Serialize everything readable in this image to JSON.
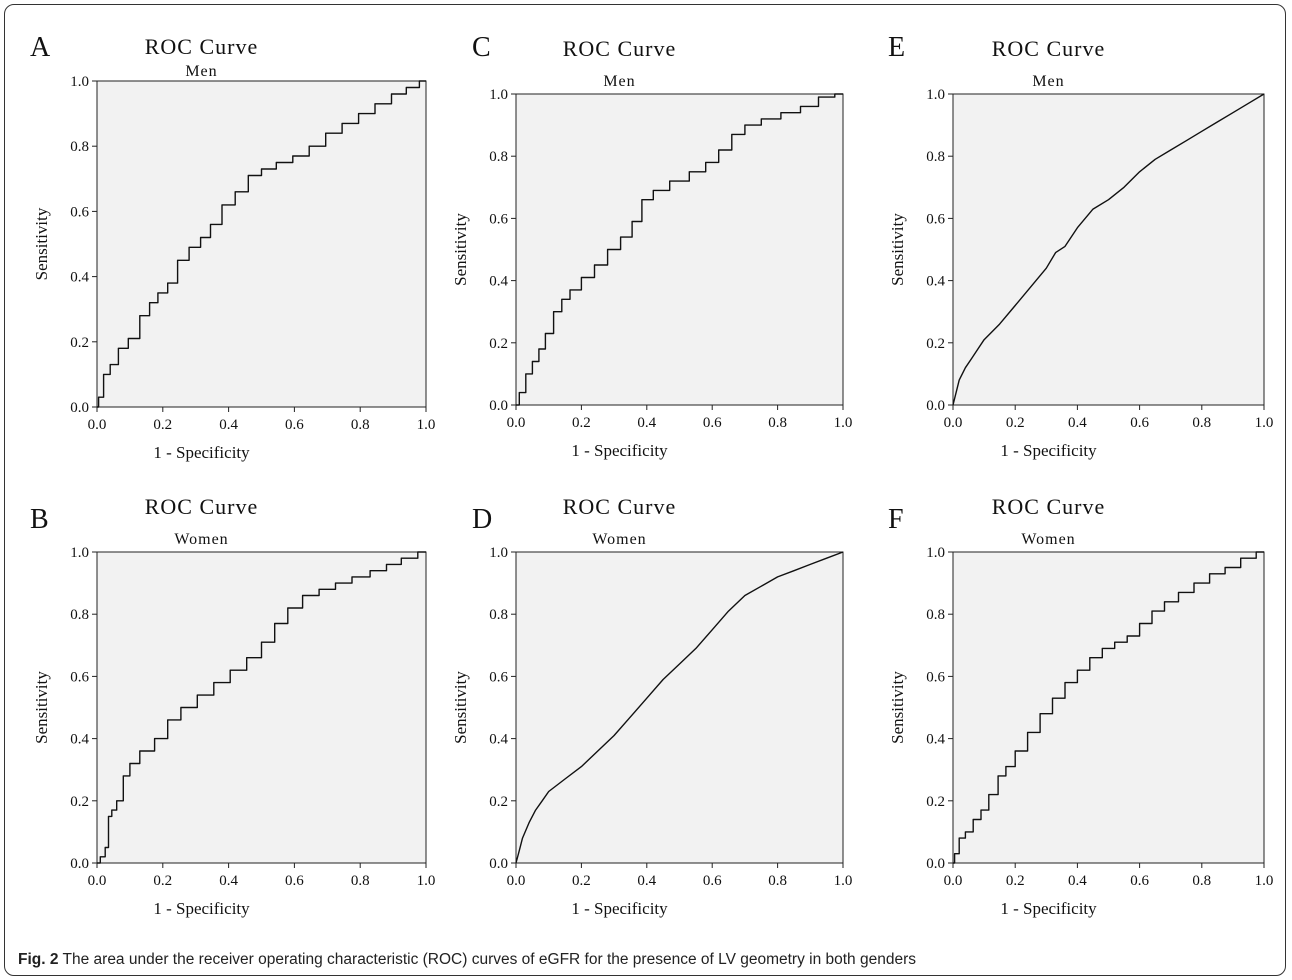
{
  "figure": {
    "caption_label": "Fig. 2",
    "caption_text": "The area under the receiver operating characteristic (ROC) curves of eGFR for the presence of LV geometry in both genders"
  },
  "chart_data": [
    {
      "type": "line",
      "panel": "A",
      "title": "ROC Curve",
      "subtitle": "Men",
      "xlabel": "1 - Specificity",
      "ylabel": "Sensitivity",
      "xlim": [
        0,
        1
      ],
      "ylim": [
        0,
        1
      ],
      "xticks": [
        "0.0",
        "0.2",
        "0.4",
        "0.6",
        "0.8",
        "1.0"
      ],
      "yticks": [
        "0.0",
        "0.2",
        "0.4",
        "0.6",
        "0.8",
        "1.0"
      ],
      "grid": false,
      "step": true,
      "x": [
        0,
        0.01,
        0.03,
        0.05,
        0.08,
        0.11,
        0.15,
        0.17,
        0.2,
        0.23,
        0.26,
        0.3,
        0.33,
        0.36,
        0.4,
        0.44,
        0.48,
        0.52,
        0.57,
        0.62,
        0.67,
        0.72,
        0.77,
        0.82,
        0.87,
        0.92,
        0.96,
        1.0
      ],
      "y": [
        0,
        0.03,
        0.1,
        0.13,
        0.18,
        0.21,
        0.28,
        0.32,
        0.35,
        0.38,
        0.45,
        0.49,
        0.52,
        0.56,
        0.62,
        0.66,
        0.71,
        0.73,
        0.75,
        0.77,
        0.8,
        0.84,
        0.87,
        0.9,
        0.93,
        0.96,
        0.98,
        1.0
      ]
    },
    {
      "type": "line",
      "panel": "B",
      "title": "ROC Curve",
      "subtitle": "Women",
      "xlabel": "1 - Specificity",
      "ylabel": "Sensitivity",
      "xlim": [
        0,
        1
      ],
      "ylim": [
        0,
        1
      ],
      "xticks": [
        "0.0",
        "0.2",
        "0.4",
        "0.6",
        "0.8",
        "1.0"
      ],
      "yticks": [
        "0.0",
        "0.2",
        "0.4",
        "0.6",
        "0.8",
        "1.0"
      ],
      "grid": false,
      "step": true,
      "x": [
        0,
        0.02,
        0.03,
        0.04,
        0.05,
        0.07,
        0.09,
        0.11,
        0.15,
        0.2,
        0.23,
        0.28,
        0.33,
        0.38,
        0.43,
        0.48,
        0.52,
        0.56,
        0.6,
        0.65,
        0.7,
        0.75,
        0.8,
        0.86,
        0.9,
        0.95,
        1.0
      ],
      "y": [
        0,
        0.02,
        0.05,
        0.15,
        0.17,
        0.2,
        0.28,
        0.32,
        0.36,
        0.4,
        0.46,
        0.5,
        0.54,
        0.58,
        0.62,
        0.66,
        0.71,
        0.77,
        0.82,
        0.86,
        0.88,
        0.9,
        0.92,
        0.94,
        0.96,
        0.98,
        1.0
      ]
    },
    {
      "type": "line",
      "panel": "C",
      "title": "ROC Curve",
      "subtitle": "Men",
      "xlabel": "1 - Specificity",
      "ylabel": "Sensitivity",
      "xlim": [
        0,
        1
      ],
      "ylim": [
        0,
        1
      ],
      "xticks": [
        "0.0",
        "0.2",
        "0.4",
        "0.6",
        "0.8",
        "1.0"
      ],
      "yticks": [
        "0.0",
        "0.2",
        "0.4",
        "0.6",
        "0.8",
        "1.0"
      ],
      "grid": false,
      "step": true,
      "x": [
        0,
        0.02,
        0.04,
        0.06,
        0.08,
        0.1,
        0.13,
        0.15,
        0.18,
        0.22,
        0.26,
        0.3,
        0.34,
        0.37,
        0.4,
        0.44,
        0.5,
        0.56,
        0.6,
        0.64,
        0.68,
        0.72,
        0.78,
        0.84,
        0.9,
        0.95,
        1.0
      ],
      "y": [
        0,
        0.04,
        0.1,
        0.14,
        0.18,
        0.23,
        0.3,
        0.34,
        0.37,
        0.41,
        0.45,
        0.5,
        0.54,
        0.59,
        0.66,
        0.69,
        0.72,
        0.75,
        0.78,
        0.82,
        0.87,
        0.9,
        0.92,
        0.94,
        0.96,
        0.99,
        1.0
      ]
    },
    {
      "type": "line",
      "panel": "D",
      "title": "ROC Curve",
      "subtitle": "Women",
      "xlabel": "1 - Specificity",
      "ylabel": "Sensitivity",
      "xlim": [
        0,
        1
      ],
      "ylim": [
        0,
        1
      ],
      "xticks": [
        "0.0",
        "0.2",
        "0.4",
        "0.6",
        "0.8",
        "1.0"
      ],
      "yticks": [
        "0.0",
        "0.2",
        "0.4",
        "0.6",
        "0.8",
        "1.0"
      ],
      "grid": false,
      "step": false,
      "x": [
        0,
        0.01,
        0.02,
        0.04,
        0.06,
        0.08,
        0.1,
        0.15,
        0.2,
        0.25,
        0.3,
        0.35,
        0.4,
        0.45,
        0.5,
        0.55,
        0.6,
        0.65,
        0.7,
        0.75,
        0.8,
        0.85,
        0.9,
        0.95,
        1.0
      ],
      "y": [
        0,
        0.04,
        0.08,
        0.13,
        0.17,
        0.2,
        0.23,
        0.27,
        0.31,
        0.36,
        0.41,
        0.47,
        0.53,
        0.59,
        0.64,
        0.69,
        0.75,
        0.81,
        0.86,
        0.89,
        0.92,
        0.94,
        0.96,
        0.98,
        1.0
      ]
    },
    {
      "type": "line",
      "panel": "E",
      "title": "ROC Curve",
      "subtitle": "Men",
      "xlabel": "1 - Specificity",
      "ylabel": "Sensitivity",
      "xlim": [
        0,
        1
      ],
      "ylim": [
        0,
        1
      ],
      "xticks": [
        "0.0",
        "0.2",
        "0.4",
        "0.6",
        "0.8",
        "1.0"
      ],
      "yticks": [
        "0.0",
        "0.2",
        "0.4",
        "0.6",
        "0.8",
        "1.0"
      ],
      "grid": false,
      "step": false,
      "x": [
        0,
        0.01,
        0.02,
        0.04,
        0.06,
        0.08,
        0.1,
        0.15,
        0.2,
        0.25,
        0.3,
        0.33,
        0.36,
        0.4,
        0.45,
        0.5,
        0.55,
        0.6,
        0.65,
        0.7,
        0.75,
        0.8,
        0.85,
        0.9,
        0.95,
        1.0
      ],
      "y": [
        0,
        0.04,
        0.08,
        0.12,
        0.15,
        0.18,
        0.21,
        0.26,
        0.32,
        0.38,
        0.44,
        0.49,
        0.51,
        0.57,
        0.63,
        0.66,
        0.7,
        0.75,
        0.79,
        0.82,
        0.85,
        0.88,
        0.91,
        0.94,
        0.97,
        1.0
      ]
    },
    {
      "type": "line",
      "panel": "F",
      "title": "ROC Curve",
      "subtitle": "Women",
      "xlabel": "1 - Specificity",
      "ylabel": "Sensitivity",
      "xlim": [
        0,
        1
      ],
      "ylim": [
        0,
        1
      ],
      "xticks": [
        "0.0",
        "0.2",
        "0.4",
        "0.6",
        "0.8",
        "1.0"
      ],
      "yticks": [
        "0.0",
        "0.2",
        "0.4",
        "0.6",
        "0.8",
        "1.0"
      ],
      "grid": false,
      "step": true,
      "x": [
        0,
        0.01,
        0.03,
        0.05,
        0.08,
        0.1,
        0.13,
        0.16,
        0.18,
        0.22,
        0.26,
        0.3,
        0.34,
        0.38,
        0.42,
        0.46,
        0.5,
        0.54,
        0.58,
        0.62,
        0.66,
        0.7,
        0.75,
        0.8,
        0.85,
        0.9,
        0.95,
        1.0
      ],
      "y": [
        0,
        0.03,
        0.08,
        0.1,
        0.14,
        0.17,
        0.22,
        0.28,
        0.31,
        0.36,
        0.42,
        0.48,
        0.53,
        0.58,
        0.62,
        0.66,
        0.69,
        0.71,
        0.73,
        0.77,
        0.81,
        0.84,
        0.87,
        0.9,
        0.93,
        0.95,
        0.98,
        1.0
      ]
    }
  ]
}
